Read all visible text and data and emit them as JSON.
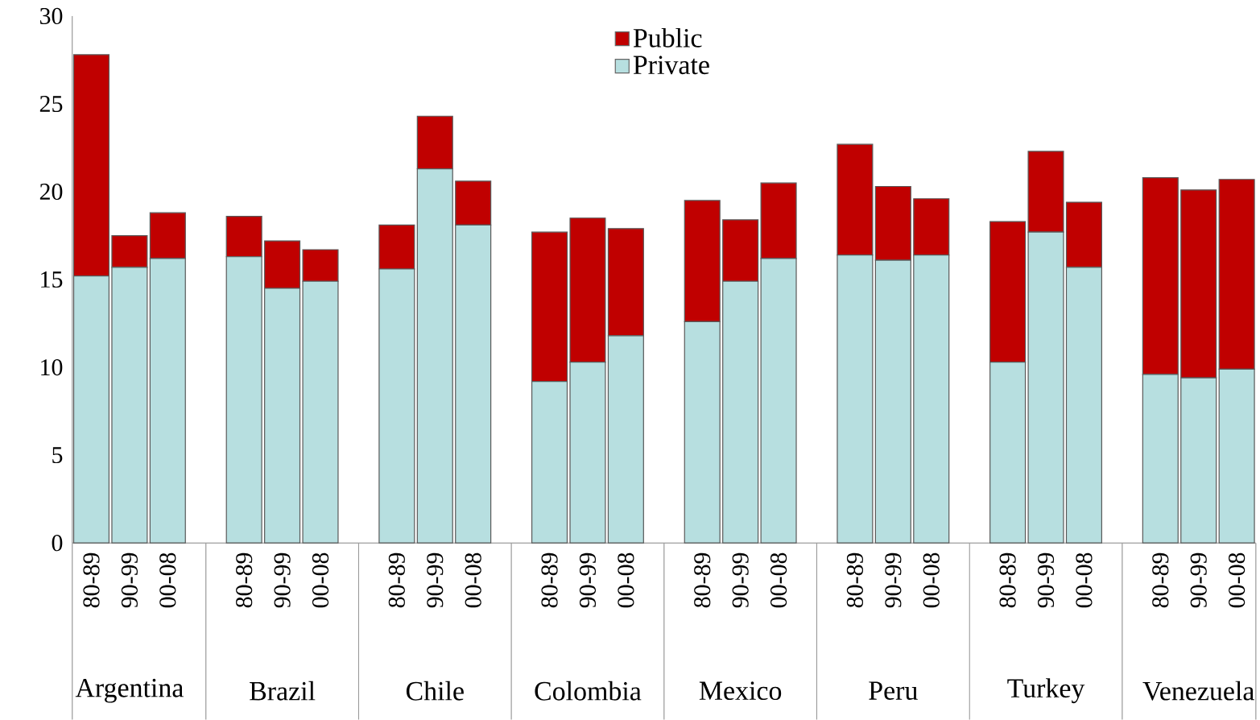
{
  "chart_data": {
    "type": "bar",
    "stacked": true,
    "categories": [
      "80-89",
      "90-99",
      "00-08",
      null,
      "80-89",
      "90-99",
      "00-08",
      null,
      "80-89",
      "90-99",
      "00-08",
      null,
      "80-89",
      "90-99",
      "00-08",
      null,
      "80-89",
      "90-99",
      "00-08",
      null,
      "80-89",
      "90-99",
      "00-08",
      null,
      "80-89",
      "90-99",
      "00-08",
      null,
      "80-89",
      "90-99",
      "00-08"
    ],
    "series": [
      {
        "name": "Private",
        "color": "#b7dfe0",
        "values": [
          15.2,
          15.7,
          16.2,
          null,
          16.3,
          14.5,
          14.9,
          null,
          15.6,
          21.3,
          18.1,
          null,
          9.2,
          10.3,
          11.8,
          null,
          12.6,
          14.9,
          16.2,
          null,
          16.4,
          16.1,
          16.4,
          null,
          10.3,
          17.7,
          15.7,
          null,
          9.6,
          9.4,
          9.9
        ]
      },
      {
        "name": "Public",
        "color": "#c00000",
        "values": [
          12.6,
          1.8,
          2.6,
          null,
          2.3,
          2.7,
          1.8,
          null,
          2.5,
          3.0,
          2.5,
          null,
          8.5,
          8.2,
          6.1,
          null,
          6.9,
          3.5,
          4.3,
          null,
          6.3,
          4.2,
          3.2,
          null,
          8.0,
          4.6,
          3.7,
          null,
          11.2,
          10.7,
          10.8
        ]
      }
    ],
    "annotations": [
      "Argentina",
      "Brazil",
      "Chile",
      "Colombia",
      "Mexico",
      "Peru",
      "Turkey",
      "Venezuela"
    ],
    "ylim": [
      0,
      30
    ],
    "yticks": [
      0,
      5,
      10,
      15,
      20,
      25,
      30
    ],
    "legend": "top",
    "grid": false
  }
}
